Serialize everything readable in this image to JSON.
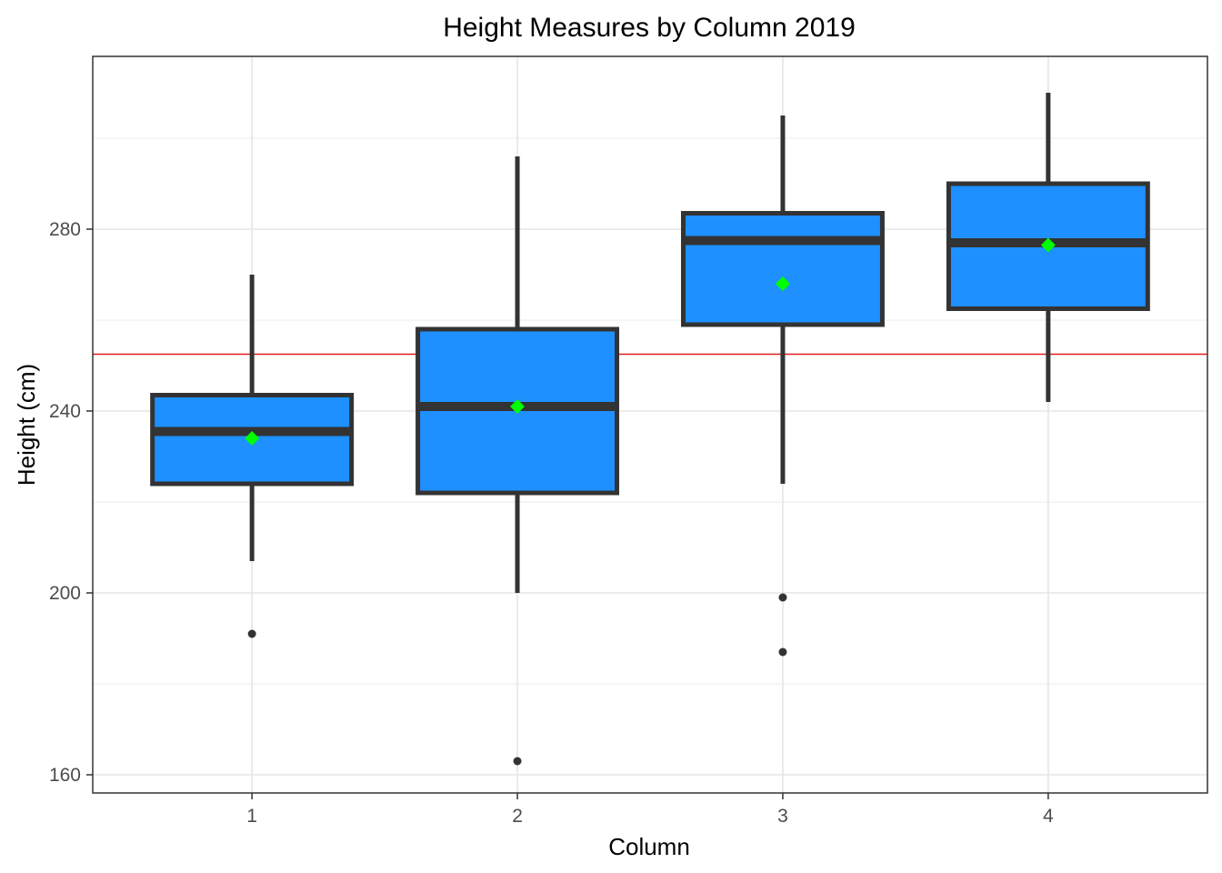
{
  "chart_data": {
    "type": "boxplot",
    "title": "Height Measures by Column 2019",
    "xlabel": "Column",
    "ylabel": "Height (cm)",
    "categories": [
      "1",
      "2",
      "3",
      "4"
    ],
    "ylim": [
      156,
      318
    ],
    "yticks": [
      160,
      200,
      240,
      280
    ],
    "grid": true,
    "reference_line": {
      "y": 252.5,
      "color": "#e31a1c"
    },
    "box_fill": "#1e90ff",
    "box_outline": "#333333",
    "mean_marker_color": "#00ff00",
    "boxes": [
      {
        "category": "1",
        "whisker_low": 207,
        "q1": 224,
        "median": 235.5,
        "q3": 243.5,
        "whisker_high": 270,
        "mean": 234,
        "outliers": [
          191
        ]
      },
      {
        "category": "2",
        "whisker_low": 200,
        "q1": 222,
        "median": 241,
        "q3": 258,
        "whisker_high": 296,
        "mean": 241,
        "outliers": [
          163
        ]
      },
      {
        "category": "3",
        "whisker_low": 224,
        "q1": 259,
        "median": 277.5,
        "q3": 283.5,
        "whisker_high": 305,
        "mean": 268,
        "outliers": [
          199,
          187
        ]
      },
      {
        "category": "4",
        "whisker_low": 242,
        "q1": 262.5,
        "median": 277,
        "q3": 290,
        "whisker_high": 310,
        "mean": 276.5,
        "outliers": []
      }
    ]
  }
}
